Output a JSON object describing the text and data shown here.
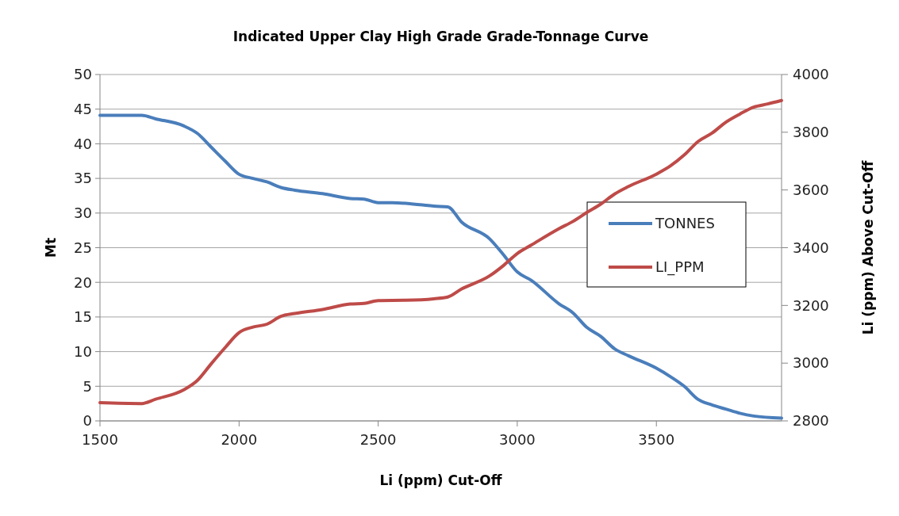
{
  "chart_data": {
    "type": "line",
    "title": "Indicated Upper Clay High Grade Grade-Tonnage Curve",
    "xlabel": "Li (ppm) Cut-Off",
    "ylabel": "Mt",
    "y2label": "Li (ppm) Above Cut-Off",
    "xlim": [
      1500,
      3950
    ],
    "xticks": [
      1500,
      2000,
      2500,
      3000,
      3500
    ],
    "ylim": [
      0,
      50
    ],
    "yticks": [
      0,
      5,
      10,
      15,
      20,
      25,
      30,
      35,
      40,
      45,
      50
    ],
    "y2lim": [
      2800,
      4000
    ],
    "y2ticks": [
      2800,
      3000,
      3200,
      3400,
      3600,
      3800,
      4000
    ],
    "grid": "y",
    "legend": "right",
    "line_style": "solid",
    "series": [
      {
        "name": "TONNES",
        "color": "#4a7ebb",
        "x": [
          1500,
          1650,
          1700,
          1800,
          1850,
          1900,
          1950,
          2000,
          2050,
          2100,
          2150,
          2200,
          2300,
          2400,
          2450,
          2500,
          2550,
          2650,
          2700,
          2750,
          2800,
          2900,
          2950,
          3000,
          3050,
          3150,
          3200,
          3250,
          3300,
          3350,
          3400,
          3500,
          3550,
          3600,
          3650,
          3700,
          3750,
          3800,
          3850,
          3950
        ],
        "values": [
          44.1,
          44.1,
          43.6,
          42.6,
          41.5,
          39.5,
          37.5,
          35.6,
          35.0,
          34.5,
          33.7,
          33.3,
          32.8,
          32.1,
          32.0,
          31.5,
          31.5,
          31.2,
          31.0,
          30.9,
          28.7,
          26.3,
          24.0,
          21.5,
          20.3,
          16.9,
          15.6,
          13.5,
          12.2,
          10.4,
          9.4,
          7.6,
          6.4,
          5.0,
          3.1,
          2.3,
          1.7,
          1.1,
          0.7,
          0.4
        ]
      },
      {
        "name": "LI_PPM",
        "color": "#be4b48",
        "axis": "y2",
        "x": [
          1500,
          1650,
          1700,
          1800,
          1850,
          1900,
          1950,
          2000,
          2050,
          2100,
          2150,
          2200,
          2300,
          2400,
          2450,
          2500,
          2600,
          2700,
          2750,
          2800,
          2900,
          2950,
          3000,
          3050,
          3150,
          3200,
          3250,
          3300,
          3350,
          3400,
          3500,
          3550,
          3600,
          3650,
          3700,
          3750,
          3800,
          3850,
          3900,
          3950
        ],
        "values": [
          2863,
          2860,
          2875,
          2907,
          2940,
          2998,
          3054,
          3106,
          3125,
          3135,
          3162,
          3172,
          3186,
          3205,
          3207,
          3217,
          3218,
          3223,
          3229,
          3257,
          3302,
          3338,
          3380,
          3409,
          3466,
          3491,
          3522,
          3551,
          3586,
          3612,
          3655,
          3683,
          3721,
          3768,
          3797,
          3835,
          3863,
          3887,
          3898,
          3910
        ]
      }
    ]
  }
}
